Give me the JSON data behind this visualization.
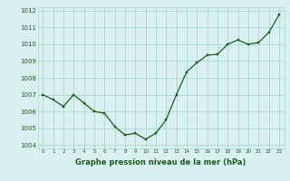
{
  "x": [
    0,
    1,
    2,
    3,
    4,
    5,
    6,
    7,
    8,
    9,
    10,
    11,
    12,
    13,
    14,
    15,
    16,
    17,
    18,
    19,
    20,
    21,
    22,
    23
  ],
  "y": [
    1007.0,
    1006.7,
    1006.3,
    1007.0,
    1006.5,
    1006.0,
    1005.9,
    1005.1,
    1004.6,
    1004.7,
    1004.35,
    1004.7,
    1005.5,
    1007.0,
    1008.35,
    1008.9,
    1009.35,
    1009.4,
    1010.0,
    1010.25,
    1010.0,
    1010.1,
    1010.7,
    1011.75
  ],
  "line_color": "#1a5c1a",
  "marker_color": "#1a5c1a",
  "bg_color": "#d8f0f0",
  "grid_color": "#a8d8d0",
  "xlabel": "Graphe pression niveau de la mer (hPa)",
  "xlabel_color": "#1a5c1a",
  "tick_color": "#1a5c1a",
  "ylim": [
    1003.8,
    1012.2
  ],
  "xlim": [
    -0.5,
    23.5
  ],
  "yticks": [
    1004,
    1005,
    1006,
    1007,
    1008,
    1009,
    1010,
    1011,
    1012
  ],
  "xticks": [
    0,
    1,
    2,
    3,
    4,
    5,
    6,
    7,
    8,
    9,
    10,
    11,
    12,
    13,
    14,
    15,
    16,
    17,
    18,
    19,
    20,
    21,
    22,
    23
  ],
  "figsize": [
    3.2,
    2.0
  ],
  "dpi": 100
}
